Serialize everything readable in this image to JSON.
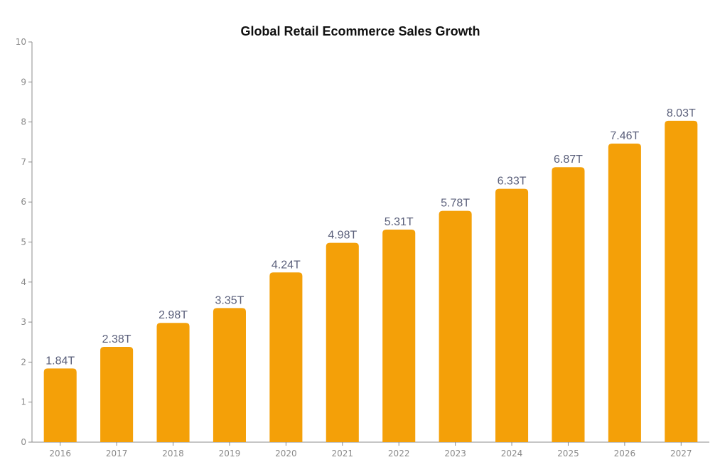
{
  "chart_data": {
    "type": "bar",
    "title": "Global Retail Ecommerce Sales Growth",
    "xlabel": "",
    "ylabel": "",
    "categories": [
      "2016",
      "2017",
      "2018",
      "2019",
      "2020",
      "2021",
      "2022",
      "2023",
      "2024",
      "2025",
      "2026",
      "2027"
    ],
    "values": [
      1.84,
      2.38,
      2.98,
      3.35,
      4.24,
      4.98,
      5.31,
      5.78,
      6.33,
      6.87,
      7.46,
      8.03
    ],
    "data_labels": [
      "1.84T",
      "2.38T",
      "2.98T",
      "3.35T",
      "4.24T",
      "4.98T",
      "5.31T",
      "5.78T",
      "6.33T",
      "6.87T",
      "7.46T",
      "8.03T"
    ],
    "ylim": [
      0,
      10
    ],
    "y_ticks": [
      "0",
      "1",
      "2",
      "3",
      "4",
      "5",
      "6",
      "7",
      "8",
      "9",
      "10"
    ],
    "grid": false,
    "legend": "none",
    "bar_color": "#F4A008"
  }
}
